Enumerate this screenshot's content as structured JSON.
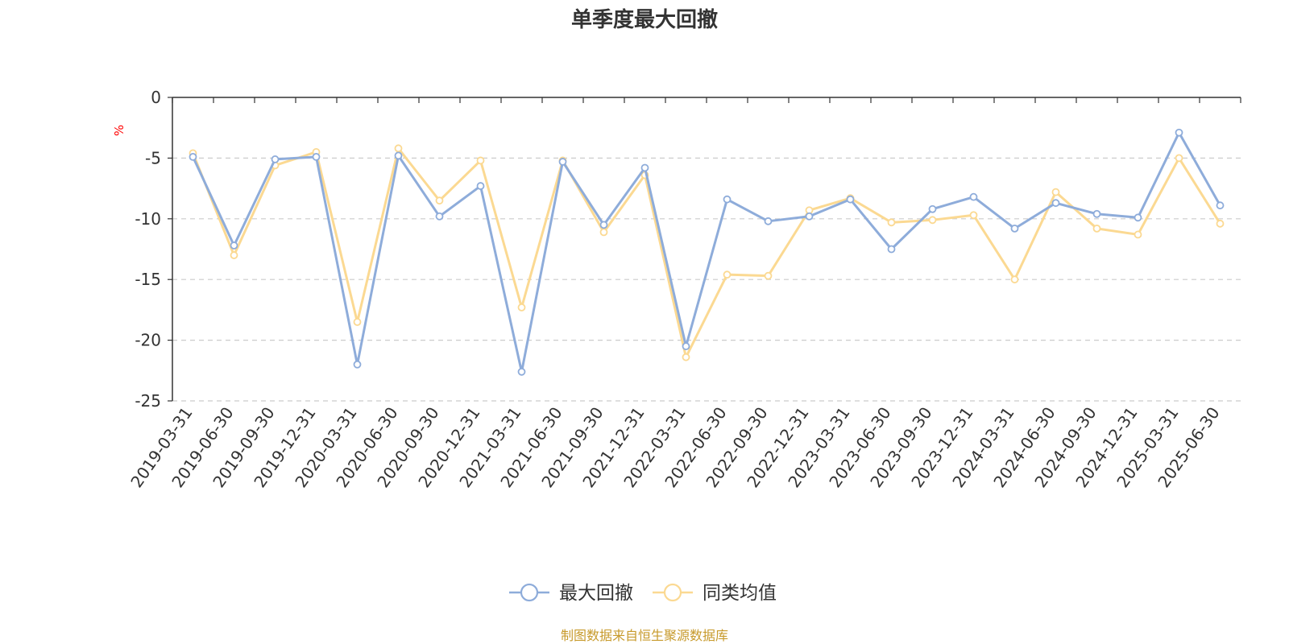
{
  "chart_data": {
    "type": "line",
    "title": "单季度最大回撤",
    "ylabel": "%",
    "ylim": [
      -25,
      0
    ],
    "yticks": [
      0,
      -5,
      -10,
      -15,
      -20,
      -25
    ],
    "grid": true,
    "legend_position": "bottom-center",
    "categories": [
      "2019-03-31",
      "2019-06-30",
      "2019-09-30",
      "2019-12-31",
      "2020-03-31",
      "2020-06-30",
      "2020-09-30",
      "2020-12-31",
      "2021-03-31",
      "2021-06-30",
      "2021-09-30",
      "2021-12-31",
      "2022-03-31",
      "2022-06-30",
      "2022-09-30",
      "2022-12-31",
      "2023-03-31",
      "2023-06-30",
      "2023-09-30",
      "2023-12-31",
      "2024-03-31",
      "2024-06-30",
      "2024-09-30",
      "2024-12-31",
      "2025-03-31",
      "2025-06-30"
    ],
    "series": [
      {
        "name": "最大回撤",
        "color": "#8eacda",
        "values": [
          -4.9,
          -12.2,
          -5.1,
          -4.9,
          -22.0,
          -4.8,
          -9.8,
          -7.3,
          -22.6,
          -5.3,
          -10.5,
          -5.8,
          -20.5,
          -8.4,
          -10.2,
          -9.8,
          -8.4,
          -12.5,
          -9.2,
          -8.2,
          -10.8,
          -8.7,
          -9.6,
          -9.9,
          -2.9,
          -8.9
        ]
      },
      {
        "name": "同类均值",
        "color": "#fbd992",
        "values": [
          -4.6,
          -13.0,
          -5.6,
          -4.5,
          -18.5,
          -4.2,
          -8.5,
          -5.2,
          -17.3,
          -5.2,
          -11.1,
          -6.4,
          -21.4,
          -14.6,
          -14.7,
          -9.3,
          -8.3,
          -10.3,
          -10.1,
          -9.7,
          -15.0,
          -7.8,
          -10.8,
          -11.3,
          -5.0,
          -10.4
        ]
      }
    ],
    "source_note": "制图数据来自恒生聚源数据库"
  }
}
